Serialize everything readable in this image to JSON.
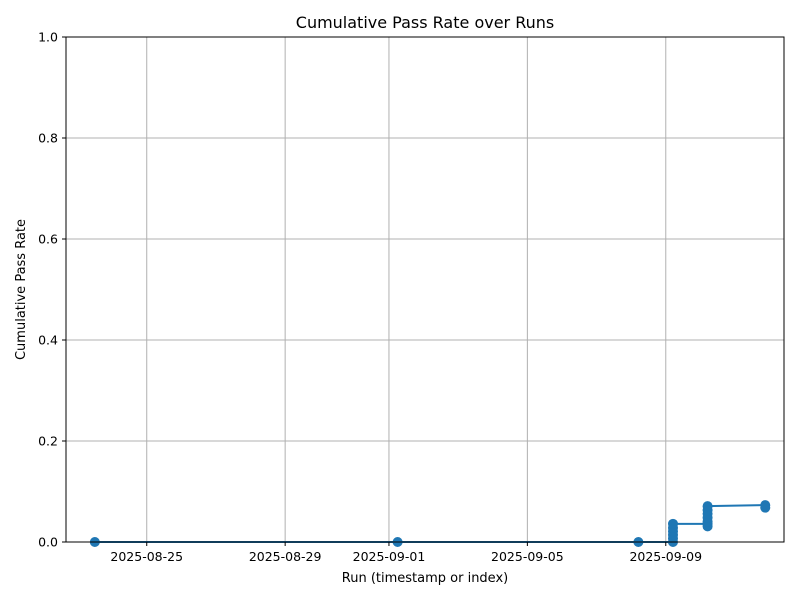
{
  "chart_data": {
    "type": "line",
    "title": "Cumulative Pass Rate over Runs",
    "xlabel": "Run (timestamp or index)",
    "ylabel": "Cumulative Pass Rate",
    "x_axis_type": "date",
    "xlim": [
      "2025-08-22T16:00",
      "2025-09-12T10:00"
    ],
    "ylim": [
      0,
      1
    ],
    "x_ticks": [
      "2025-08-25",
      "2025-08-29",
      "2025-09-01",
      "2025-09-05",
      "2025-09-09"
    ],
    "y_ticks": [
      0.0,
      0.2,
      0.4,
      0.6,
      0.8,
      1.0
    ],
    "y_tick_labels": [
      "0.0",
      "0.2",
      "0.4",
      "0.6",
      "0.8",
      "1.0"
    ],
    "grid": true,
    "legend": false,
    "series_color": "#1f77b4",
    "series": [
      {
        "points": [
          {
            "x": "2025-08-23T12:00",
            "y": 0.0
          },
          {
            "x": "2025-09-01T06:00",
            "y": 0.0
          },
          {
            "x": "2025-09-08T05:00",
            "y": 0.0
          },
          {
            "x": "2025-09-09T05:00",
            "y": 0.0
          },
          {
            "x": "2025-09-09T05:00",
            "y": 0.007
          },
          {
            "x": "2025-09-09T05:00",
            "y": 0.014
          },
          {
            "x": "2025-09-09T05:00",
            "y": 0.021
          },
          {
            "x": "2025-09-09T05:00",
            "y": 0.028
          },
          {
            "x": "2025-09-09T05:00",
            "y": 0.036
          },
          {
            "x": "2025-09-10T05:00",
            "y": 0.036
          },
          {
            "x": "2025-09-10T05:00",
            "y": 0.031
          },
          {
            "x": "2025-09-10T05:00",
            "y": 0.04
          },
          {
            "x": "2025-09-10T05:00",
            "y": 0.048
          },
          {
            "x": "2025-09-10T05:00",
            "y": 0.056
          },
          {
            "x": "2025-09-10T05:00",
            "y": 0.063
          },
          {
            "x": "2025-09-10T05:00",
            "y": 0.071
          },
          {
            "x": "2025-09-11T21:00",
            "y": 0.073
          },
          {
            "x": "2025-09-11T21:00",
            "y": 0.068
          }
        ]
      }
    ]
  }
}
